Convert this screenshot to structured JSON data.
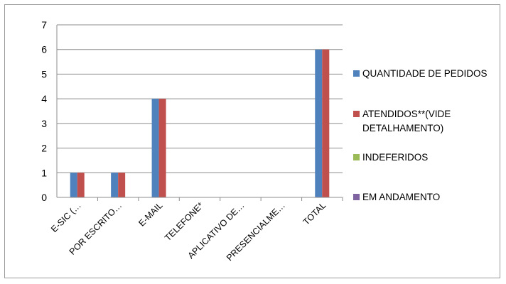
{
  "chart_data": {
    "type": "bar",
    "title": "",
    "xlabel": "",
    "ylabel": "",
    "ylim": [
      0,
      7
    ],
    "yticks": [
      0,
      1,
      2,
      3,
      4,
      5,
      6,
      7
    ],
    "grid": true,
    "legend_position": "right",
    "categories": [
      "E-SIC (…",
      "POR ESCRITO…",
      "E-MAIL",
      "TELEFONE*",
      "APLICATIVO DE…",
      "PRESENCIALME…",
      "TOTAL"
    ],
    "series": [
      {
        "name": "QUANTIDADE DE PEDIDOS",
        "name_lines": [
          "QUANTIDADE DE PEDIDOS"
        ],
        "color": "#4f81bd",
        "values": [
          1,
          1,
          4,
          0,
          0,
          0,
          6
        ]
      },
      {
        "name": "ATENDIDOS**(VIDE DETALHAMENTO)",
        "name_lines": [
          "ATENDIDOS**(VIDE",
          "DETALHAMENTO)"
        ],
        "color": "#c0504d",
        "values": [
          1,
          1,
          4,
          0,
          0,
          0,
          6
        ]
      },
      {
        "name": "INDEFERIDOS",
        "name_lines": [
          "INDEFERIDOS"
        ],
        "color": "#9bbb59",
        "values": [
          0,
          0,
          0,
          0,
          0,
          0,
          0
        ]
      },
      {
        "name": "EM ANDAMENTO",
        "name_lines": [
          "EM ANDAMENTO"
        ],
        "color": "#8064a2",
        "values": [
          0,
          0,
          0,
          0,
          0,
          0,
          0
        ]
      }
    ]
  }
}
